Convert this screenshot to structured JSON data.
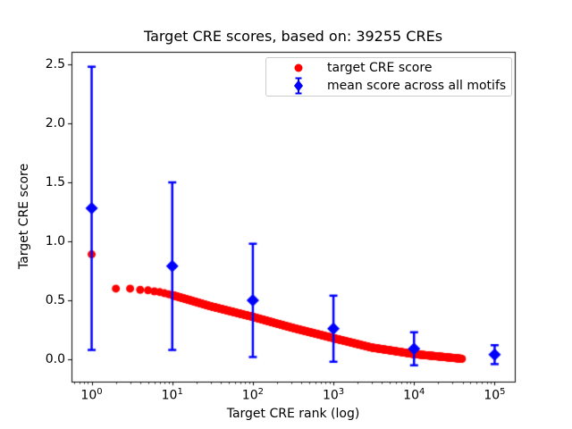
{
  "figure": {
    "title": "Target CRE scores, based on: 39255 CREs",
    "xlabel": "Target CRE rank (log)",
    "ylabel": "Target CRE score"
  },
  "legend": {
    "items": [
      {
        "label": "target CRE score",
        "marker": "red-circle"
      },
      {
        "label": "mean score across all motifs",
        "marker": "blue-diamond-errorbar"
      }
    ],
    "position": "upper right"
  },
  "colors": {
    "red": "#ff0000",
    "blue": "#0000ff",
    "axis": "#000000",
    "legend_border": "#cccccc",
    "background": "#ffffff"
  },
  "chart_data": {
    "type": "scatter",
    "title": "Target CRE scores, based on: 39255 CREs",
    "xlabel": "Target CRE rank (log)",
    "ylabel": "Target CRE score",
    "x_scale": "log10",
    "n_cres": 39255,
    "xlim_log10": [
      -0.25,
      5.25
    ],
    "ylim": [
      -0.19,
      2.61
    ],
    "x_major_tick_exponents": [
      0,
      1,
      2,
      3,
      4,
      5
    ],
    "y_ticks": [
      0.0,
      0.5,
      1.0,
      1.5,
      2.0,
      2.5
    ],
    "grid": false,
    "legend_position": "upper right",
    "series": [
      {
        "name": "target CRE score",
        "type": "scatter",
        "marker": "circle",
        "color": "#ff0000",
        "rank_range": [
          1,
          39255
        ],
        "rank_score_anchors": [
          [
            1,
            0.89
          ],
          [
            2,
            0.6
          ],
          [
            3,
            0.6
          ],
          [
            4,
            0.59
          ],
          [
            5,
            0.585
          ],
          [
            7,
            0.57
          ],
          [
            10,
            0.545
          ],
          [
            30,
            0.45
          ],
          [
            100,
            0.36
          ],
          [
            300,
            0.27
          ],
          [
            1000,
            0.18
          ],
          [
            3000,
            0.1
          ],
          [
            10000,
            0.045
          ],
          [
            20000,
            0.025
          ],
          [
            39255,
            0.005
          ]
        ]
      },
      {
        "name": "mean score across all motifs",
        "type": "errorbar",
        "marker": "diamond",
        "color": "#0000ff",
        "x": [
          1,
          10,
          100,
          1000,
          10000,
          100000
        ],
        "mean": [
          1.28,
          0.79,
          0.5,
          0.26,
          0.09,
          0.04
        ],
        "err": [
          1.2,
          0.71,
          0.48,
          0.28,
          0.14,
          0.08
        ]
      }
    ]
  }
}
